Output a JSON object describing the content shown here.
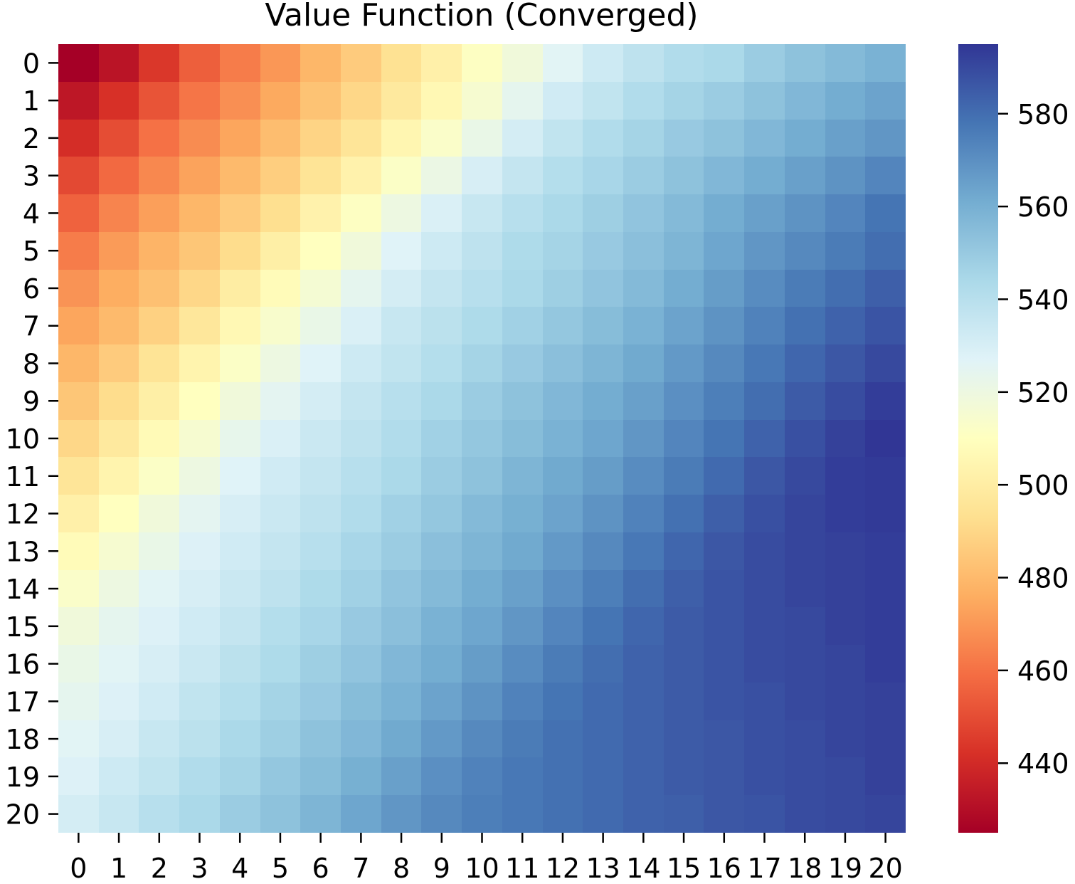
{
  "chart_data": {
    "type": "heatmap",
    "title": "Value Function (Converged)",
    "xlabel": "",
    "ylabel": "",
    "x_categories": [
      "0",
      "1",
      "2",
      "3",
      "4",
      "5",
      "6",
      "7",
      "8",
      "9",
      "10",
      "11",
      "12",
      "13",
      "14",
      "15",
      "16",
      "17",
      "18",
      "19",
      "20"
    ],
    "y_categories": [
      "0",
      "1",
      "2",
      "3",
      "4",
      "5",
      "6",
      "7",
      "8",
      "9",
      "10",
      "11",
      "12",
      "13",
      "14",
      "15",
      "16",
      "17",
      "18",
      "19",
      "20"
    ],
    "colormap": "RdYlBu",
    "vmin": 425,
    "vmax": 595,
    "colorbar_ticks": [
      440,
      460,
      480,
      500,
      520,
      540,
      560,
      580
    ],
    "grid": false,
    "values": [
      [
        425,
        432,
        444,
        455,
        463,
        470,
        479,
        486,
        494,
        502,
        511,
        518,
        526,
        533,
        538,
        542,
        544,
        549,
        553,
        556,
        559
      ],
      [
        433,
        442,
        452,
        461,
        468,
        475,
        483,
        490,
        498,
        506,
        515,
        524,
        532,
        537,
        542,
        546,
        549,
        553,
        557,
        561,
        564
      ],
      [
        441,
        450,
        460,
        467,
        474,
        481,
        489,
        496,
        505,
        513,
        522,
        531,
        537,
        542,
        546,
        550,
        553,
        557,
        561,
        565,
        568
      ],
      [
        449,
        458,
        466,
        473,
        480,
        487,
        495,
        503,
        512,
        521,
        530,
        536,
        541,
        545,
        549,
        553,
        557,
        561,
        565,
        569,
        573
      ],
      [
        456,
        465,
        472,
        479,
        486,
        493,
        503,
        511,
        520,
        529,
        535,
        540,
        544,
        548,
        552,
        556,
        561,
        565,
        569,
        573,
        578
      ],
      [
        463,
        471,
        478,
        484,
        492,
        501,
        510,
        518,
        527,
        533,
        538,
        543,
        546,
        550,
        554,
        558,
        563,
        568,
        572,
        576,
        580
      ],
      [
        469,
        476,
        482,
        490,
        500,
        508,
        516,
        524,
        531,
        536,
        540,
        544,
        548,
        552,
        556,
        561,
        566,
        571,
        576,
        580,
        584
      ],
      [
        474,
        480,
        488,
        497,
        506,
        514,
        522,
        529,
        535,
        539,
        543,
        547,
        551,
        555,
        559,
        564,
        569,
        574,
        579,
        583,
        587
      ],
      [
        479,
        486,
        495,
        504,
        512,
        520,
        527,
        533,
        537,
        541,
        546,
        550,
        554,
        558,
        562,
        567,
        572,
        577,
        582,
        586,
        590
      ],
      [
        484,
        492,
        501,
        510,
        518,
        525,
        531,
        536,
        540,
        544,
        549,
        553,
        557,
        561,
        565,
        570,
        575,
        580,
        585,
        589,
        593
      ],
      [
        490,
        498,
        507,
        515,
        523,
        529,
        534,
        538,
        542,
        547,
        551,
        555,
        559,
        563,
        568,
        573,
        578,
        583,
        588,
        592,
        595
      ],
      [
        496,
        504,
        512,
        520,
        527,
        532,
        536,
        540,
        544,
        549,
        553,
        558,
        562,
        566,
        571,
        576,
        581,
        586,
        590,
        593,
        594
      ],
      [
        502,
        510,
        518,
        525,
        530,
        534,
        538,
        542,
        547,
        551,
        556,
        560,
        564,
        569,
        574,
        579,
        584,
        588,
        591,
        593,
        594
      ],
      [
        508,
        515,
        522,
        528,
        532,
        536,
        540,
        545,
        549,
        554,
        558,
        562,
        567,
        572,
        577,
        582,
        586,
        589,
        591,
        592,
        593
      ],
      [
        513,
        520,
        526,
        530,
        534,
        538,
        543,
        547,
        552,
        556,
        561,
        565,
        570,
        575,
        580,
        584,
        587,
        589,
        591,
        592,
        593
      ],
      [
        518,
        524,
        528,
        532,
        536,
        541,
        545,
        550,
        554,
        559,
        563,
        568,
        573,
        578,
        582,
        585,
        587,
        589,
        590,
        592,
        593
      ],
      [
        522,
        526,
        530,
        534,
        539,
        543,
        548,
        552,
        557,
        561,
        566,
        571,
        576,
        580,
        583,
        585,
        587,
        589,
        590,
        591,
        593
      ],
      [
        524,
        528,
        532,
        537,
        541,
        546,
        550,
        555,
        559,
        564,
        569,
        574,
        578,
        581,
        583,
        585,
        587,
        588,
        590,
        591,
        592
      ],
      [
        526,
        530,
        535,
        539,
        544,
        548,
        553,
        557,
        562,
        567,
        572,
        576,
        579,
        581,
        583,
        585,
        586,
        588,
        589,
        591,
        592
      ],
      [
        528,
        533,
        537,
        542,
        546,
        551,
        555,
        560,
        565,
        570,
        574,
        577,
        579,
        581,
        583,
        585,
        586,
        588,
        589,
        590,
        592
      ],
      [
        531,
        535,
        540,
        544,
        549,
        553,
        558,
        563,
        568,
        572,
        575,
        577,
        579,
        581,
        583,
        584,
        586,
        587,
        589,
        590,
        591
      ]
    ]
  }
}
